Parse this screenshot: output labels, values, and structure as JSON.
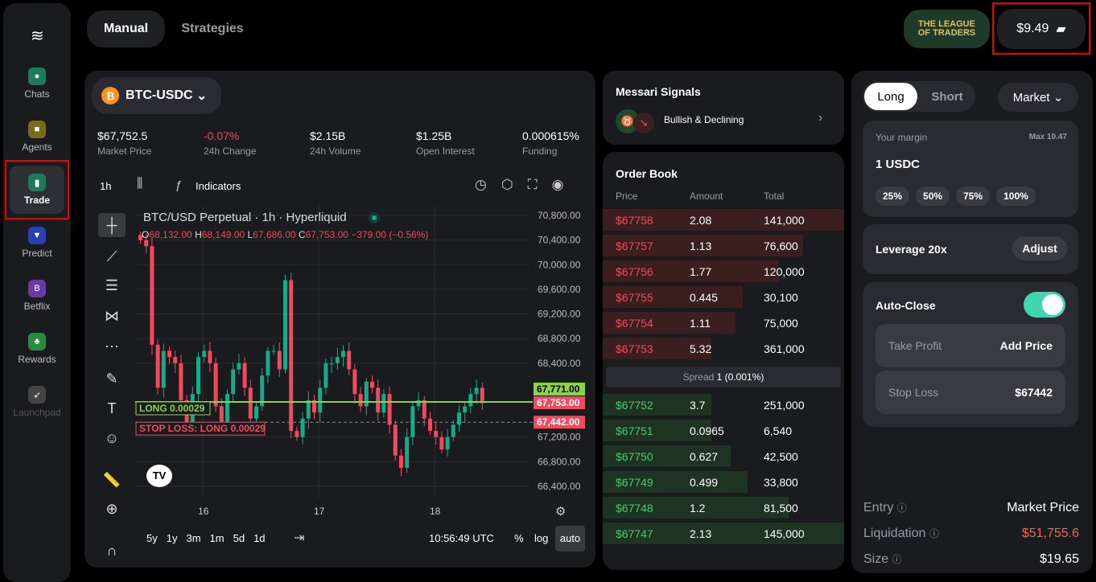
{
  "nav": [
    {
      "label": "Chats",
      "color": "#1f7a5c",
      "glyph": "●"
    },
    {
      "label": "Agents",
      "color": "#7a6a20",
      "glyph": "■"
    },
    {
      "label": "Trade",
      "color": "#1f7a5c",
      "glyph": "▮"
    },
    {
      "label": "Predict",
      "color": "#2a3fb0",
      "glyph": "▼"
    },
    {
      "label": "Betflix",
      "color": "#6a3aa0",
      "glyph": "B"
    },
    {
      "label": "Rewards",
      "color": "#2a8a40",
      "glyph": "♣"
    },
    {
      "label": "Launchpad",
      "color": "#444",
      "glyph": "➶"
    }
  ],
  "tabs": {
    "manual": "Manual",
    "strategies": "Strategies"
  },
  "league": "THE LEAGUE OF TRADERS",
  "balance": "$9.49",
  "pair": "BTC-USDC",
  "stats": [
    {
      "v": "$67,752.5",
      "l": "Market Price"
    },
    {
      "v": "-0.07%",
      "l": "24h Change"
    },
    {
      "v": "$2.15B",
      "l": "24h Volume"
    },
    {
      "v": "$1.25B",
      "l": "Open Interest"
    },
    {
      "v": "0.000615%",
      "l": "Funding"
    }
  ],
  "toolbar": {
    "interval": "1h",
    "indicators": "Indicators"
  },
  "chart_data": {
    "type": "candlestick",
    "title": "BTC/USD Perpetual · 1h · Hyperliquid",
    "ohlc": {
      "o": "68,132.00",
      "h": "68,149.00",
      "l": "67,686.00",
      "c": "67,753.00",
      "chg": "−379.00 (−0.56%)"
    },
    "yticks": [
      70800,
      70400,
      70000,
      69600,
      69200,
      68800,
      68400,
      67200,
      66800,
      66400
    ],
    "ylim": [
      66400,
      70800
    ],
    "xticks": [
      "16",
      "17",
      "18"
    ],
    "closes": [
      70400,
      70300,
      68700,
      68000,
      68600,
      68500,
      68400,
      67800,
      67400,
      67900,
      68500,
      68600,
      68400,
      67700,
      67400,
      67900,
      68300,
      68400,
      68000,
      67500,
      67700,
      68200,
      68600,
      68600,
      68300,
      69750,
      67300,
      67200,
      67500,
      67800,
      67600,
      68000,
      68400,
      68400,
      68500,
      68600,
      68300,
      67900,
      67700,
      68100,
      68000,
      67600,
      67900,
      67400,
      66900,
      66700,
      67200,
      67700,
      67800,
      67500,
      67300,
      67200,
      67000,
      67200,
      67400,
      67600,
      67700,
      67900,
      68000,
      67753
    ],
    "labels": {
      "price1": "67,771.00",
      "price2": "67,753.00",
      "price3": "67,442.00",
      "long": "LONG 0.00029",
      "stop": "STOP LOSS: LONG 0.00029"
    }
  },
  "bottombar": {
    "ranges": [
      "5y",
      "1y",
      "3m",
      "1m",
      "5d",
      "1d"
    ],
    "time": "10:56:49 UTC",
    "pct": "%",
    "log": "log",
    "auto": "auto"
  },
  "signals": {
    "title": "Messari Signals",
    "text": "Bullish & Declining"
  },
  "orderbook": {
    "title": "Order Book",
    "cols": [
      "Price",
      "Amount",
      "Total"
    ],
    "asks": [
      [
        "$67758",
        "2.08",
        "141,000",
        1.0
      ],
      [
        "$67757",
        "1.13",
        "76,600",
        0.83
      ],
      [
        "$67756",
        "1.77",
        "120,000",
        0.73
      ],
      [
        "$67755",
        "0.445",
        "30,100",
        0.58
      ],
      [
        "$67754",
        "1.11",
        "75,000",
        0.55
      ],
      [
        "$67753",
        "5.32",
        "361,000",
        0.45
      ]
    ],
    "spread": "Spread",
    "spread_v": "1 (0.001%)",
    "bids": [
      [
        "$67752",
        "3.7",
        "251,000",
        0.45
      ],
      [
        "$67751",
        "0.0965",
        "6,540",
        0.45
      ],
      [
        "$67750",
        "0.627",
        "42,500",
        0.53
      ],
      [
        "$67749",
        "0.499",
        "33,800",
        0.6
      ],
      [
        "$67748",
        "1.2",
        "81,500",
        0.77
      ],
      [
        "$67747",
        "2.13",
        "145,000",
        1.0
      ]
    ]
  },
  "order": {
    "long": "Long",
    "short": "Short",
    "type": "Market",
    "margin_label": "Your margin",
    "max": "Max 10.47",
    "margin": "1 USDC",
    "pcts": [
      "25%",
      "50%",
      "75%",
      "100%"
    ],
    "leverage": "Leverage 20x",
    "adjust": "Adjust",
    "autoclose": "Auto-Close",
    "tp": "Take Profit",
    "tp_v": "Add Price",
    "sl": "Stop Loss",
    "sl_v": "$67442",
    "info": [
      {
        "l": "Entry",
        "v": "Market Price"
      },
      {
        "l": "Liquidation",
        "v": "$51,755.6"
      },
      {
        "l": "Size",
        "v": "$19.65"
      }
    ]
  }
}
